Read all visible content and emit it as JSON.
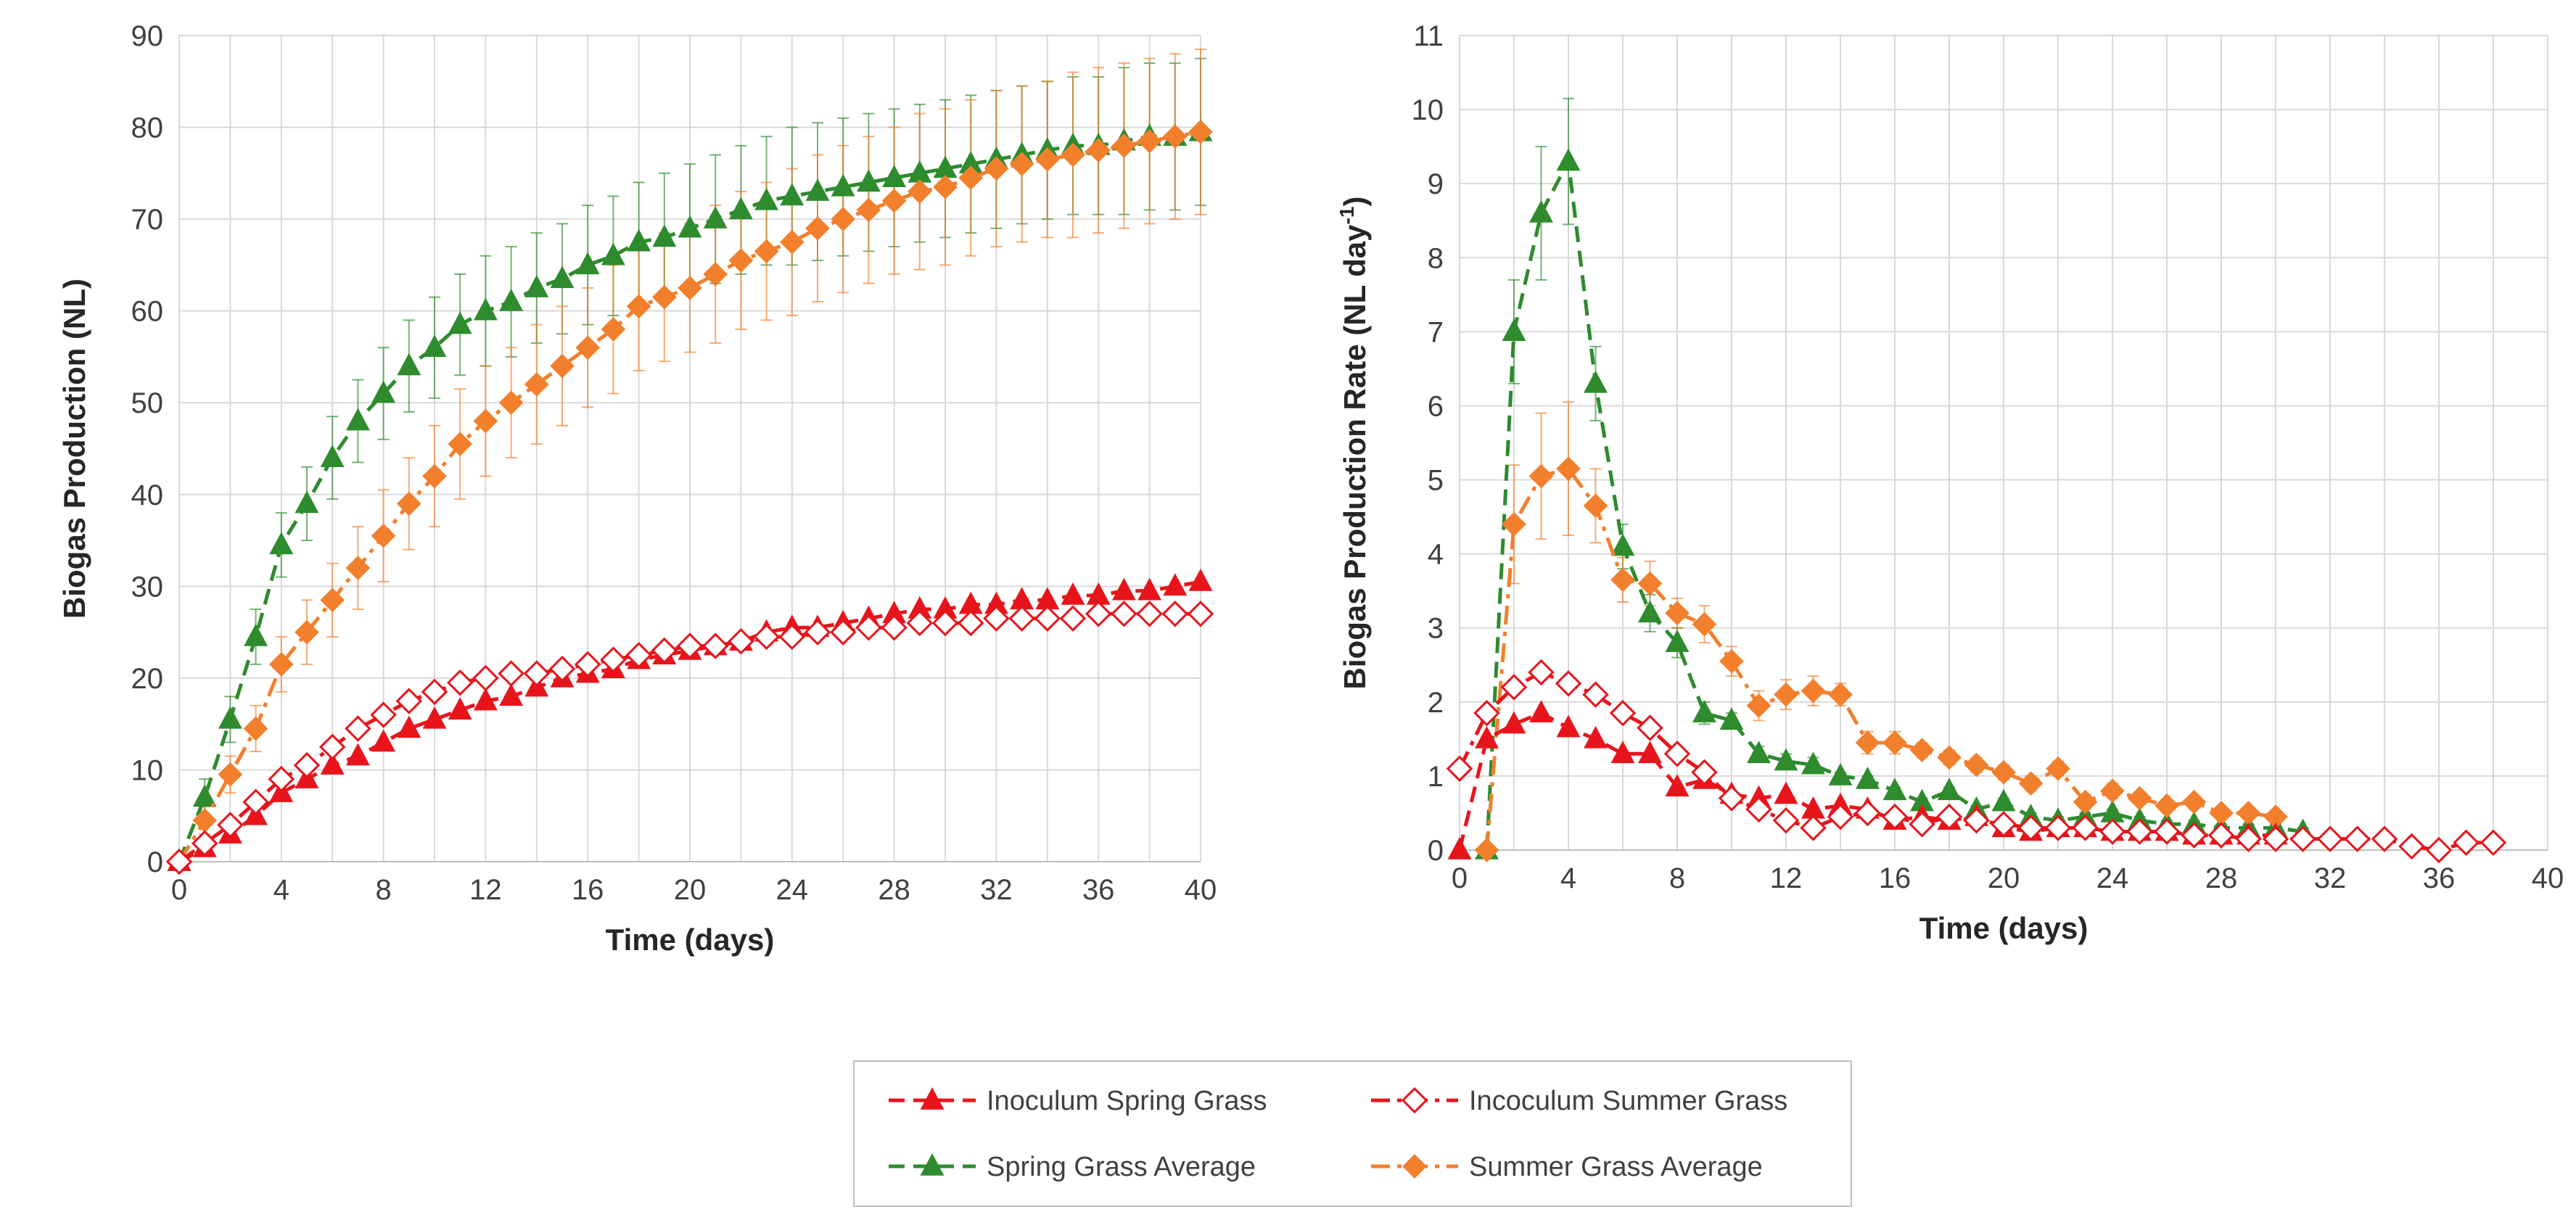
{
  "chart_data": [
    {
      "type": "line",
      "id": "cumulative",
      "title": "",
      "xlabel": "Time (days)",
      "ylabel": "Biogas Production (NL)",
      "xlim": [
        0,
        40
      ],
      "ylim": [
        0,
        90
      ],
      "xticks": [
        0,
        4,
        8,
        12,
        16,
        20,
        24,
        28,
        32,
        36,
        40
      ],
      "yticks": [
        0,
        10,
        20,
        30,
        40,
        50,
        60,
        70,
        80,
        90
      ],
      "grid": true,
      "series": [
        {
          "name": "Spring Grass Average",
          "color": "#2e8b2e",
          "marker": "triangle",
          "filled": true,
          "dash": "dashed",
          "x": [
            0,
            1,
            2,
            3,
            4,
            5,
            6,
            7,
            8,
            9,
            10,
            11,
            12,
            13,
            14,
            15,
            16,
            17,
            18,
            19,
            20,
            21,
            22,
            23,
            24,
            25,
            26,
            27,
            28,
            29,
            30,
            31,
            32,
            33,
            34,
            35,
            36,
            37,
            38,
            39,
            40
          ],
          "y": [
            0,
            7,
            15.5,
            24.5,
            34.5,
            39,
            44,
            48,
            51,
            54,
            56,
            58.5,
            60,
            61,
            62.5,
            63.5,
            65,
            66,
            67.5,
            68,
            69,
            70,
            71,
            72,
            72.5,
            73,
            73.5,
            74,
            74.5,
            75,
            75.5,
            76,
            76.5,
            77,
            77.5,
            78,
            78,
            78.5,
            79,
            79,
            79.5
          ],
          "error": [
            0,
            2,
            2.5,
            3,
            3.5,
            4,
            4.5,
            4.5,
            5,
            5,
            5.5,
            5.5,
            6,
            6,
            6,
            6,
            6.5,
            6.5,
            6.5,
            7,
            7,
            7,
            7,
            7,
            7.5,
            7.5,
            7.5,
            7.5,
            7.5,
            7.5,
            7.5,
            7.5,
            7.5,
            7.5,
            7.5,
            7.5,
            7.5,
            8,
            8,
            8,
            8
          ]
        },
        {
          "name": "Summer Grass Average",
          "color": "#f27f2c",
          "marker": "diamond",
          "filled": true,
          "dash": "dashdot",
          "x": [
            0,
            1,
            2,
            3,
            4,
            5,
            6,
            7,
            8,
            9,
            10,
            11,
            12,
            13,
            14,
            15,
            16,
            17,
            18,
            19,
            20,
            21,
            22,
            23,
            24,
            25,
            26,
            27,
            28,
            29,
            30,
            31,
            32,
            33,
            34,
            35,
            36,
            37,
            38,
            39,
            40
          ],
          "y": [
            0,
            4.5,
            9.5,
            14.5,
            21.5,
            25,
            28.5,
            32,
            35.5,
            39,
            42,
            45.5,
            48,
            50,
            52,
            54,
            56,
            58,
            60.5,
            61.5,
            62.5,
            64,
            65.5,
            66.5,
            67.5,
            69,
            70,
            71,
            72,
            73,
            73.5,
            74.5,
            75.5,
            76,
            76.5,
            77,
            77.5,
            78,
            78.5,
            79,
            79.5
          ],
          "error": [
            0,
            1.5,
            2,
            2.5,
            3,
            3.5,
            4,
            4.5,
            5,
            5,
            5.5,
            6,
            6,
            6,
            6.5,
            6.5,
            6.5,
            7,
            7,
            7,
            7,
            7.5,
            7.5,
            7.5,
            8,
            8,
            8,
            8,
            8,
            8.5,
            8.5,
            8.5,
            8.5,
            8.5,
            8.5,
            9,
            9,
            9,
            9,
            9,
            9
          ]
        },
        {
          "name": "Inoculum Spring Grass",
          "color": "#e8141b",
          "marker": "triangle",
          "filled": true,
          "dash": "dashed",
          "x": [
            0,
            1,
            2,
            3,
            4,
            5,
            6,
            7,
            8,
            9,
            10,
            11,
            12,
            13,
            14,
            15,
            16,
            17,
            18,
            19,
            20,
            21,
            22,
            23,
            24,
            25,
            26,
            27,
            28,
            29,
            30,
            31,
            32,
            33,
            34,
            35,
            36,
            37,
            38,
            39,
            40
          ],
          "y": [
            0,
            1.5,
            3,
            5,
            7.5,
            9,
            10.5,
            11.5,
            13,
            14.5,
            15.5,
            16.5,
            17.5,
            18,
            19,
            20,
            20.5,
            21,
            22,
            22.5,
            23,
            23.5,
            24,
            25,
            25.5,
            25.5,
            26,
            26.5,
            27,
            27.5,
            27.5,
            28,
            28,
            28.5,
            28.5,
            29,
            29,
            29.5,
            29.5,
            30,
            30.5
          ]
        },
        {
          "name": "Incoculum Summer Grass",
          "color": "#e8141b",
          "marker": "diamond",
          "filled": false,
          "dash": "dashdot",
          "x": [
            0,
            1,
            2,
            3,
            4,
            5,
            6,
            7,
            8,
            9,
            10,
            11,
            12,
            13,
            14,
            15,
            16,
            17,
            18,
            19,
            20,
            21,
            22,
            23,
            24,
            25,
            26,
            27,
            28,
            29,
            30,
            31,
            32,
            33,
            34,
            35,
            36,
            37,
            38,
            39,
            40
          ],
          "y": [
            0,
            2,
            4,
            6.5,
            9,
            10.5,
            12.5,
            14.5,
            16,
            17.5,
            18.5,
            19.5,
            20,
            20.5,
            20.5,
            21,
            21.5,
            22,
            22.5,
            23,
            23.5,
            23.5,
            24,
            24.5,
            24.5,
            25,
            25,
            25.5,
            25.5,
            26,
            26,
            26,
            26.5,
            26.5,
            26.5,
            26.5,
            27,
            27,
            27,
            27,
            27
          ]
        }
      ]
    },
    {
      "type": "line",
      "id": "rate",
      "title": "",
      "xlabel": "Time (days)",
      "ylabel_main": "Biogas Production Rate (NL day",
      "ylabel_sup": "-1",
      "ylabel_end": ")",
      "xlim": [
        0,
        40
      ],
      "ylim": [
        0,
        11
      ],
      "xticks": [
        0,
        4,
        8,
        12,
        16,
        20,
        24,
        28,
        32,
        36,
        40
      ],
      "yticks": [
        0,
        1,
        2,
        3,
        4,
        5,
        6,
        7,
        8,
        9,
        10,
        11
      ],
      "grid": true,
      "series": [
        {
          "name": "Spring Grass Average",
          "color": "#2e8b2e",
          "marker": "triangle",
          "filled": true,
          "dash": "dashed",
          "x": [
            1,
            2,
            3,
            4,
            5,
            6,
            7,
            8,
            9,
            10,
            11,
            12,
            13,
            14,
            15,
            16,
            17,
            18,
            19,
            20,
            21,
            22,
            23,
            24,
            25,
            26,
            27,
            28,
            29,
            30,
            31
          ],
          "y": [
            0,
            7,
            8.6,
            9.3,
            6.3,
            4.1,
            3.2,
            2.8,
            1.85,
            1.75,
            1.3,
            1.2,
            1.15,
            1.0,
            0.95,
            0.8,
            0.65,
            0.8,
            0.55,
            0.65,
            0.45,
            0.4,
            0.45,
            0.5,
            0.4,
            0.35,
            0.35,
            0.3,
            0.3,
            0.3,
            0.25
          ],
          "error": [
            0,
            0.7,
            0.9,
            0.85,
            0.5,
            0.3,
            0.25,
            0.2,
            0.15,
            0.1,
            0.1,
            0.1,
            0.1,
            0.05,
            0.05,
            0.05,
            0.05,
            0.05,
            0.05,
            0.05,
            0.05,
            0.05,
            0.05,
            0.05,
            0.05,
            0.05,
            0.05,
            0.05,
            0.05,
            0.05,
            0.05
          ]
        },
        {
          "name": "Summer Grass Average",
          "color": "#f27f2c",
          "marker": "diamond",
          "filled": true,
          "dash": "dashdot",
          "x": [
            1,
            2,
            3,
            4,
            5,
            6,
            7,
            8,
            9,
            10,
            11,
            12,
            13,
            14,
            15,
            16,
            17,
            18,
            19,
            20,
            21,
            22,
            23,
            24,
            25,
            26,
            27,
            28,
            29,
            30
          ],
          "y": [
            0,
            4.4,
            5.05,
            5.15,
            4.65,
            3.65,
            3.6,
            3.2,
            3.05,
            2.55,
            1.95,
            2.1,
            2.15,
            2.1,
            1.45,
            1.45,
            1.35,
            1.25,
            1.15,
            1.05,
            0.9,
            1.1,
            0.65,
            0.8,
            0.7,
            0.6,
            0.65,
            0.5,
            0.5,
            0.45
          ],
          "error": [
            0,
            0.8,
            0.85,
            0.9,
            0.5,
            0.3,
            0.3,
            0.2,
            0.25,
            0.2,
            0.2,
            0.2,
            0.2,
            0.15,
            0.15,
            0.15,
            0.1,
            0.1,
            0.1,
            0.1,
            0.1,
            0.1,
            0.1,
            0.1,
            0.05,
            0.05,
            0.05,
            0.05,
            0.05,
            0.05
          ]
        },
        {
          "name": "Inoculum Spring Grass",
          "color": "#e8141b",
          "marker": "triangle",
          "filled": true,
          "dash": "dashed",
          "x": [
            0,
            1,
            2,
            3,
            4,
            5,
            6,
            7,
            8,
            9,
            10,
            11,
            12,
            13,
            14,
            15,
            16,
            17,
            18,
            19,
            20,
            21,
            22,
            23,
            24,
            25,
            26,
            27,
            28,
            29,
            30
          ],
          "y": [
            0,
            1.5,
            1.7,
            1.85,
            1.65,
            1.5,
            1.3,
            1.3,
            0.85,
            0.95,
            0.75,
            0.7,
            0.75,
            0.55,
            0.6,
            0.55,
            0.4,
            0.45,
            0.4,
            0.45,
            0.3,
            0.25,
            0.3,
            0.3,
            0.25,
            0.25,
            0.25,
            0.2,
            0.2,
            0.2,
            0.2
          ]
        },
        {
          "name": "Incoculum Summer Grass",
          "color": "#e8141b",
          "marker": "diamond",
          "filled": false,
          "dash": "dashdot",
          "x": [
            0,
            1,
            2,
            3,
            4,
            5,
            6,
            7,
            8,
            9,
            10,
            11,
            12,
            13,
            14,
            15,
            16,
            17,
            18,
            19,
            20,
            21,
            22,
            23,
            24,
            25,
            26,
            27,
            28,
            29,
            30,
            31,
            32,
            33,
            34,
            35,
            36,
            37,
            38
          ],
          "y": [
            1.1,
            1.85,
            2.2,
            2.4,
            2.25,
            2.1,
            1.85,
            1.65,
            1.3,
            1.05,
            0.7,
            0.55,
            0.4,
            0.3,
            0.45,
            0.5,
            0.45,
            0.35,
            0.45,
            0.4,
            0.35,
            0.3,
            0.3,
            0.3,
            0.25,
            0.25,
            0.25,
            0.2,
            0.2,
            0.15,
            0.15,
            0.15,
            0.15,
            0.15,
            0.15,
            0.05,
            0.0,
            0.1,
            0.1
          ]
        }
      ]
    }
  ],
  "legend": {
    "position": "bottom-center",
    "items": [
      {
        "label": "Inoculum Spring Grass",
        "color": "#e8141b",
        "marker": "triangle",
        "filled": true,
        "dash": "dashed"
      },
      {
        "label": "Incoculum Summer Grass",
        "color": "#e8141b",
        "marker": "diamond",
        "filled": false,
        "dash": "dashdot"
      },
      {
        "label": "Spring Grass Average",
        "color": "#2e8b2e",
        "marker": "triangle",
        "filled": true,
        "dash": "dashed"
      },
      {
        "label": "Summer Grass Average",
        "color": "#f27f2c",
        "marker": "diamond",
        "filled": true,
        "dash": "dashdot"
      }
    ]
  }
}
